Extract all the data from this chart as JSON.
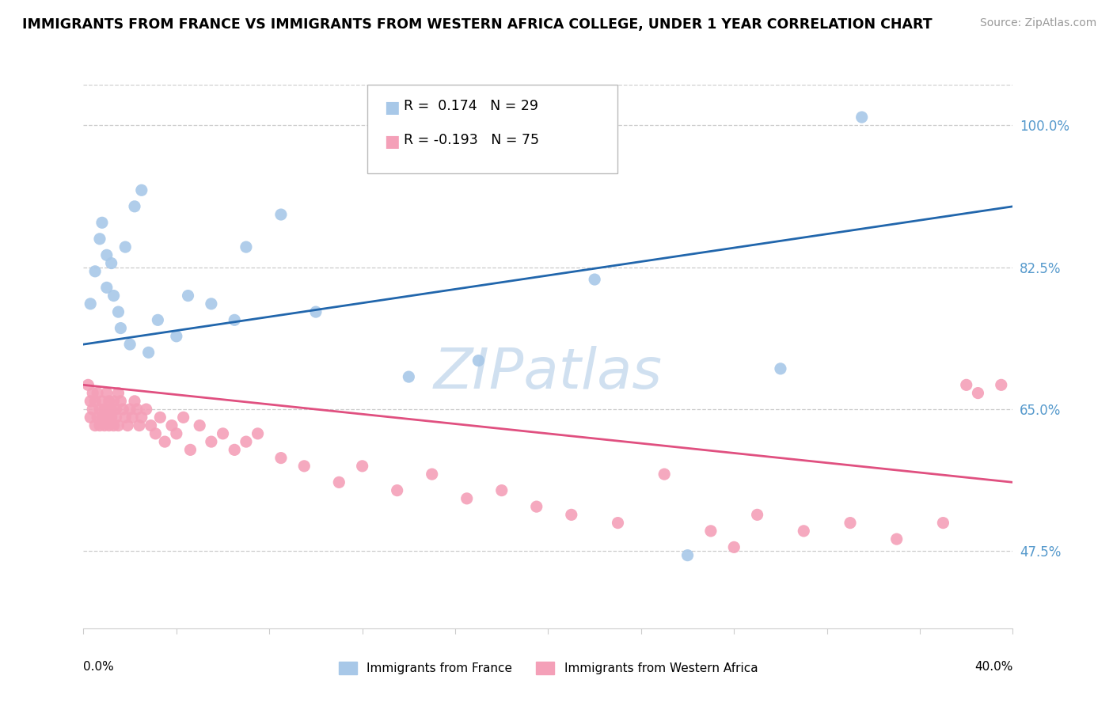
{
  "title": "IMMIGRANTS FROM FRANCE VS IMMIGRANTS FROM WESTERN AFRICA COLLEGE, UNDER 1 YEAR CORRELATION CHART",
  "source": "Source: ZipAtlas.com",
  "ylabel": "College, Under 1 year",
  "right_yticks": [
    47.5,
    65.0,
    82.5,
    100.0
  ],
  "right_ytick_labels": [
    "47.5%",
    "65.0%",
    "82.5%",
    "100.0%"
  ],
  "xlim": [
    0.0,
    40.0
  ],
  "ylim": [
    38.0,
    105.0
  ],
  "legend_blue_r": "0.174",
  "legend_blue_n": "29",
  "legend_pink_r": "-0.193",
  "legend_pink_n": "75",
  "blue_color": "#a8c8e8",
  "pink_color": "#f4a0b8",
  "blue_line_color": "#2166ac",
  "pink_line_color": "#e05080",
  "grid_color": "#cccccc",
  "right_label_color": "#5599cc",
  "watermark_color": "#d0e0f0",
  "blue_scatter_x": [
    0.3,
    0.5,
    0.7,
    0.8,
    1.0,
    1.0,
    1.2,
    1.3,
    1.5,
    1.6,
    1.8,
    2.0,
    2.2,
    2.5,
    2.8,
    3.2,
    4.0,
    4.5,
    5.5,
    6.5,
    7.0,
    8.5,
    10.0,
    14.0,
    17.0,
    22.0,
    26.0,
    30.0,
    33.5
  ],
  "blue_scatter_y": [
    78,
    82,
    86,
    88,
    80,
    84,
    83,
    79,
    77,
    75,
    85,
    73,
    90,
    92,
    72,
    76,
    74,
    79,
    78,
    76,
    85,
    89,
    77,
    69,
    71,
    81,
    47,
    70,
    101
  ],
  "pink_scatter_x": [
    0.2,
    0.3,
    0.3,
    0.4,
    0.4,
    0.5,
    0.5,
    0.6,
    0.6,
    0.7,
    0.7,
    0.8,
    0.8,
    0.9,
    0.9,
    1.0,
    1.0,
    1.0,
    1.1,
    1.1,
    1.2,
    1.2,
    1.3,
    1.3,
    1.4,
    1.4,
    1.5,
    1.5,
    1.6,
    1.7,
    1.8,
    1.9,
    2.0,
    2.1,
    2.2,
    2.3,
    2.4,
    2.5,
    2.7,
    2.9,
    3.1,
    3.3,
    3.5,
    3.8,
    4.0,
    4.3,
    4.6,
    5.0,
    5.5,
    6.0,
    6.5,
    7.0,
    7.5,
    8.5,
    9.5,
    11.0,
    12.0,
    13.5,
    15.0,
    16.5,
    18.0,
    19.5,
    21.0,
    23.0,
    25.0,
    27.0,
    29.0,
    31.0,
    33.0,
    35.0,
    37.0,
    38.5,
    39.5,
    28.0,
    38.0
  ],
  "pink_scatter_y": [
    68,
    66,
    64,
    67,
    65,
    63,
    66,
    64,
    67,
    65,
    63,
    66,
    64,
    65,
    63,
    67,
    65,
    64,
    66,
    63,
    65,
    64,
    66,
    63,
    65,
    64,
    67,
    63,
    66,
    65,
    64,
    63,
    65,
    64,
    66,
    65,
    63,
    64,
    65,
    63,
    62,
    64,
    61,
    63,
    62,
    64,
    60,
    63,
    61,
    62,
    60,
    61,
    62,
    59,
    58,
    56,
    58,
    55,
    57,
    54,
    55,
    53,
    52,
    51,
    57,
    50,
    52,
    50,
    51,
    49,
    51,
    67,
    68,
    48,
    68
  ]
}
